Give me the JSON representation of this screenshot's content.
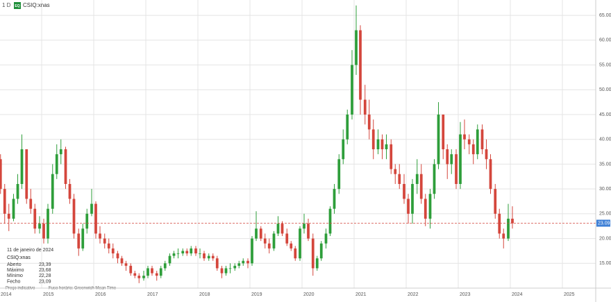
{
  "chart_data": {
    "type": "candlestick",
    "interval": "1 D",
    "badge": "EQ",
    "title": "CSIQ:xnas",
    "info": {
      "date": "11 de janeiro de 2024",
      "symbol": "CSIQ:xnas",
      "rows": [
        [
          "Aberto",
          "23,39"
        ],
        [
          "Máximo",
          "23,68"
        ],
        [
          "Mínimo",
          "22,28"
        ],
        [
          "Fecho",
          "23,09"
        ]
      ]
    },
    "notes": [
      "Preço indicativo",
      "Fuso horário: Greenwich Mean Time"
    ],
    "up_color": "#2e9e3a",
    "down_color": "#d4463c",
    "xlim": [
      2014.2,
      2025.64
    ],
    "xticks": [
      2014,
      2015,
      2016,
      2017,
      2018,
      2019,
      2020,
      2021,
      2022,
      2023,
      2024,
      2025
    ],
    "ylim": [
      10,
      66
    ],
    "yticks": [
      {
        "value": 15,
        "label": "15.00"
      },
      {
        "value": 20,
        "label": "20.00"
      },
      {
        "value": 25,
        "label": "25.00"
      },
      {
        "value": 30,
        "label": "30.00"
      },
      {
        "value": 35,
        "label": "35.00"
      },
      {
        "value": 40,
        "label": "40.00"
      },
      {
        "value": 45,
        "label": "45.00"
      },
      {
        "value": 50,
        "label": "50.00"
      },
      {
        "value": 55,
        "label": "55.00"
      },
      {
        "value": 60,
        "label": "60.00"
      },
      {
        "value": 65,
        "label": "65.00"
      }
    ],
    "grid": true,
    "last_price": {
      "value": 23.09,
      "label": "23.09",
      "color": "#d4463c",
      "box_color": "#3d7fd6"
    },
    "x": [
      2014.21,
      2014.29,
      2014.37,
      2014.46,
      2014.54,
      2014.62,
      2014.71,
      2014.79,
      2014.87,
      2014.96,
      2015.04,
      2015.12,
      2015.21,
      2015.29,
      2015.37,
      2015.46,
      2015.54,
      2015.62,
      2015.71,
      2015.79,
      2015.87,
      2015.96,
      2016.04,
      2016.12,
      2016.21,
      2016.29,
      2016.37,
      2016.46,
      2016.54,
      2016.62,
      2016.71,
      2016.79,
      2016.87,
      2016.96,
      2017.04,
      2017.12,
      2017.21,
      2017.29,
      2017.37,
      2017.46,
      2017.54,
      2017.62,
      2017.71,
      2017.79,
      2017.87,
      2017.96,
      2018.04,
      2018.12,
      2018.21,
      2018.29,
      2018.37,
      2018.46,
      2018.54,
      2018.62,
      2018.71,
      2018.79,
      2018.87,
      2018.96,
      2019.04,
      2019.12,
      2019.21,
      2019.29,
      2019.37,
      2019.46,
      2019.54,
      2019.62,
      2019.71,
      2019.79,
      2019.87,
      2019.96,
      2020.04,
      2020.12,
      2020.21,
      2020.29,
      2020.37,
      2020.46,
      2020.54,
      2020.62,
      2020.71,
      2020.79,
      2020.87,
      2020.96,
      2021.04,
      2021.12,
      2021.21,
      2021.29,
      2021.37,
      2021.46,
      2021.54,
      2021.62,
      2021.71,
      2021.79,
      2021.87,
      2021.96,
      2022.04,
      2022.12,
      2022.21,
      2022.29,
      2022.37,
      2022.46,
      2022.54,
      2022.62,
      2022.71,
      2022.79,
      2022.87,
      2022.96,
      2023.04,
      2023.12,
      2023.21,
      2023.29,
      2023.37,
      2023.46,
      2023.54,
      2023.62,
      2023.71,
      2023.79,
      2023.87,
      2023.96,
      2024.04
    ],
    "open": [
      36,
      30,
      25,
      24,
      28,
      31,
      38,
      28,
      26,
      22,
      23,
      20,
      26,
      33,
      37,
      38,
      31,
      28,
      21,
      18,
      22,
      25,
      27,
      21,
      20,
      19,
      18,
      17,
      16,
      15,
      14.5,
      13,
      12.5,
      12,
      12.5,
      14,
      13,
      12.5,
      14,
      15,
      16.5,
      17,
      17,
      17.5,
      17,
      18,
      17,
      17,
      16,
      16.5,
      16,
      14,
      13,
      14,
      14,
      14.5,
      15,
      15.5,
      15,
      20,
      22,
      20,
      19,
      18,
      21,
      23,
      21,
      19,
      18,
      16,
      22,
      23,
      20,
      14,
      16,
      19,
      21,
      26,
      30,
      36,
      40,
      45,
      55,
      62,
      48,
      45,
      42,
      38,
      40,
      38,
      39,
      34,
      33,
      31,
      28,
      25,
      31,
      33,
      28,
      24,
      29,
      35,
      45,
      38,
      35,
      37,
      31,
      41,
      40,
      39,
      37,
      42,
      38,
      36,
      30,
      25,
      21,
      20,
      24
    ],
    "high": [
      37,
      31,
      27,
      29,
      33,
      41,
      38,
      30,
      27,
      24.5,
      24,
      27,
      35,
      39,
      40,
      38.5,
      32,
      29,
      22,
      23,
      26,
      30,
      27.5,
      22.5,
      21,
      20,
      19,
      17.5,
      16.5,
      15.5,
      15,
      13.5,
      13,
      13.5,
      14.5,
      14.5,
      13.5,
      14.5,
      15.5,
      17,
      17.5,
      18,
      18,
      18,
      18.5,
      18.5,
      18,
      17.5,
      17,
      17,
      16.5,
      14.5,
      14.5,
      15,
      15,
      15.5,
      16,
      16,
      20.5,
      25.5,
      22.5,
      21,
      20,
      21.5,
      24.5,
      23.5,
      22,
      19.5,
      18.5,
      22.5,
      25,
      24,
      21,
      16.5,
      19.5,
      22,
      26.5,
      31,
      37,
      42,
      46,
      58,
      67,
      63,
      51,
      48,
      44,
      42,
      41,
      41,
      40,
      35,
      35,
      33,
      29,
      32,
      36,
      35,
      29,
      30,
      36,
      47.5,
      45,
      39,
      38,
      38,
      43.5,
      44,
      41,
      40,
      43,
      43,
      40,
      37,
      31,
      26,
      22,
      27,
      26.5
    ],
    "low": [
      29,
      23,
      21.5,
      23.5,
      27,
      30,
      27,
      25,
      21,
      21,
      19,
      19,
      25,
      32,
      35,
      30,
      27,
      20,
      16.5,
      17.5,
      21,
      24.5,
      20,
      19,
      18,
      17,
      16,
      15,
      14.5,
      13.5,
      12.5,
      12,
      11,
      11.5,
      12,
      12.5,
      11.5,
      12,
      13.5,
      14.5,
      16,
      16,
      16.5,
      16.5,
      16.5,
      16.5,
      16,
      15.5,
      15.5,
      15.5,
      13.5,
      12,
      12.5,
      13,
      13.5,
      14,
      14.5,
      14,
      14.5,
      19.5,
      19.5,
      18,
      17,
      17.5,
      20.5,
      20.5,
      18.5,
      17.5,
      15.5,
      15.5,
      21,
      19.5,
      12.5,
      13.5,
      15.5,
      18,
      20.5,
      25,
      29,
      35,
      39,
      44,
      53,
      45,
      43,
      40,
      36,
      37,
      36,
      36,
      33,
      31,
      30,
      27,
      23,
      23,
      29,
      27,
      22.5,
      22,
      28,
      34,
      36,
      32,
      33,
      30,
      30,
      38,
      37,
      35,
      36,
      37,
      34,
      29,
      24,
      20,
      18,
      19.5,
      22
    ],
    "close": [
      30,
      25,
      24,
      28,
      31,
      38,
      28,
      26,
      22,
      23,
      20,
      26,
      33,
      37,
      38,
      31,
      28,
      21,
      18,
      22,
      25,
      27,
      21,
      20,
      19,
      18,
      17,
      16,
      15,
      14.5,
      13,
      12.5,
      12,
      12.5,
      14,
      13,
      12.5,
      14,
      15,
      16.5,
      17,
      17,
      17.5,
      17,
      18,
      17,
      17,
      16,
      16.5,
      16,
      14,
      13,
      14,
      14,
      14.5,
      15,
      15.5,
      15,
      20,
      22,
      20,
      19,
      18,
      21,
      23,
      21,
      19,
      18,
      16,
      22,
      23,
      20,
      14,
      16,
      19,
      21,
      26,
      30,
      36,
      40,
      45,
      55,
      62,
      48,
      45,
      42,
      38,
      40,
      38,
      39,
      34,
      33,
      31,
      28,
      25,
      31,
      33,
      28,
      24,
      29,
      35,
      45,
      38,
      35,
      37,
      31,
      41,
      40,
      39,
      37,
      42,
      38,
      36,
      30,
      25,
      21,
      20,
      24,
      23.09
    ]
  }
}
